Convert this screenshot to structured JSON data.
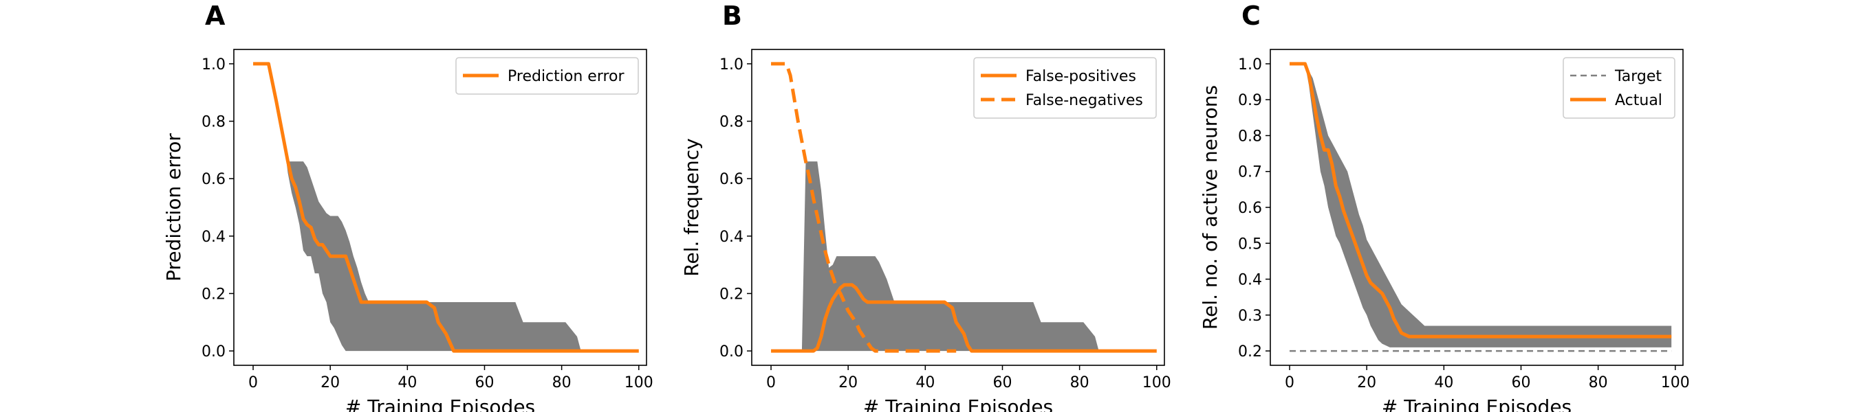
{
  "colors": {
    "line": "#ff7f0e",
    "band": "#808080",
    "target": "#808080"
  },
  "chart_data": [
    {
      "panel": "A",
      "type": "line",
      "xlabel": "# Training Episodes",
      "ylabel": "Prediction error",
      "xlim": [
        -5,
        102
      ],
      "ylim": [
        -0.05,
        1.05
      ],
      "xticks": [
        0,
        20,
        40,
        60,
        80,
        100
      ],
      "yticks": [
        0.0,
        0.2,
        0.4,
        0.6,
        0.8,
        1.0
      ],
      "ytick_labels": [
        "0.0",
        "0.2",
        "0.4",
        "0.6",
        "0.8",
        "1.0"
      ],
      "legend_position": "top-right",
      "series": [
        {
          "name": "Prediction error",
          "style": "solid",
          "x": [
            0,
            4,
            6,
            8,
            9,
            10,
            11,
            12,
            13,
            14,
            15,
            16,
            17,
            18,
            19,
            20,
            21,
            22,
            23,
            24,
            25,
            26,
            27,
            28,
            29,
            30,
            45,
            47,
            48,
            50,
            51,
            52,
            100
          ],
          "y": [
            1.0,
            1.0,
            0.87,
            0.73,
            0.66,
            0.6,
            0.57,
            0.52,
            0.46,
            0.44,
            0.43,
            0.39,
            0.37,
            0.37,
            0.35,
            0.33,
            0.33,
            0.33,
            0.33,
            0.33,
            0.29,
            0.25,
            0.21,
            0.17,
            0.17,
            0.17,
            0.17,
            0.15,
            0.1,
            0.06,
            0.03,
            0.0,
            0.0
          ]
        }
      ],
      "band": {
        "x": [
          0,
          4,
          6,
          8,
          9,
          10,
          11,
          12,
          13,
          14,
          15,
          16,
          17,
          18,
          19,
          20,
          21,
          22,
          23,
          24,
          25,
          26,
          27,
          28,
          29,
          30,
          45,
          47,
          48,
          50,
          51,
          52,
          68,
          70,
          80,
          81,
          84,
          85,
          86,
          100
        ],
        "upper": [
          1.0,
          1.0,
          0.87,
          0.73,
          0.66,
          0.66,
          0.66,
          0.66,
          0.66,
          0.64,
          0.6,
          0.56,
          0.52,
          0.5,
          0.48,
          0.47,
          0.47,
          0.47,
          0.45,
          0.42,
          0.38,
          0.33,
          0.29,
          0.24,
          0.2,
          0.17,
          0.17,
          0.17,
          0.17,
          0.17,
          0.17,
          0.17,
          0.17,
          0.1,
          0.1,
          0.1,
          0.05,
          0.0,
          0.0,
          0.0
        ],
        "lower": [
          1.0,
          1.0,
          0.87,
          0.73,
          0.62,
          0.55,
          0.5,
          0.44,
          0.35,
          0.33,
          0.33,
          0.27,
          0.27,
          0.2,
          0.17,
          0.1,
          0.08,
          0.05,
          0.02,
          0.0,
          0.0,
          0.0,
          0.0,
          0.0,
          0.0,
          0.0,
          0.0,
          0.0,
          0.0,
          0.0,
          0.0,
          0.0,
          0.0,
          0.0,
          0.0,
          0.0,
          0.0,
          0.0,
          0.0,
          0.0
        ]
      }
    },
    {
      "panel": "B",
      "type": "line",
      "xlabel": "# Training Episodes",
      "ylabel": "Rel. frequency",
      "xlim": [
        -5,
        102
      ],
      "ylim": [
        -0.05,
        1.05
      ],
      "xticks": [
        0,
        20,
        40,
        60,
        80,
        100
      ],
      "yticks": [
        0.0,
        0.2,
        0.4,
        0.6,
        0.8,
        1.0
      ],
      "ytick_labels": [
        "0.0",
        "0.2",
        "0.4",
        "0.6",
        "0.8",
        "1.0"
      ],
      "legend_position": "top-right",
      "series": [
        {
          "name": "False-positives",
          "style": "solid",
          "x": [
            0,
            11,
            12,
            13,
            14,
            15,
            16,
            17,
            18,
            19,
            20,
            21,
            22,
            23,
            24,
            25,
            26,
            27,
            28,
            30,
            45,
            47,
            48,
            50,
            51,
            52,
            100
          ],
          "y": [
            0.0,
            0.0,
            0.01,
            0.05,
            0.11,
            0.15,
            0.18,
            0.2,
            0.22,
            0.23,
            0.23,
            0.23,
            0.22,
            0.2,
            0.18,
            0.17,
            0.17,
            0.17,
            0.17,
            0.17,
            0.17,
            0.15,
            0.1,
            0.06,
            0.02,
            0.0,
            0.0
          ]
        },
        {
          "name": "False-negatives",
          "style": "dashed",
          "x": [
            0,
            4,
            5,
            6,
            7,
            8,
            9,
            10,
            11,
            12,
            13,
            14,
            15,
            16,
            17,
            18,
            19,
            20,
            21,
            22,
            23,
            24,
            25,
            26,
            27,
            30,
            48
          ],
          "y": [
            1.0,
            1.0,
            0.96,
            0.88,
            0.8,
            0.73,
            0.66,
            0.6,
            0.53,
            0.47,
            0.41,
            0.35,
            0.3,
            0.26,
            0.22,
            0.2,
            0.17,
            0.14,
            0.12,
            0.1,
            0.07,
            0.05,
            0.03,
            0.01,
            0.0,
            0.0,
            0.0
          ]
        }
      ],
      "band": {
        "x": [
          0,
          8,
          9,
          10,
          11,
          12,
          13,
          14,
          15,
          16,
          17,
          18,
          19,
          20,
          25,
          27,
          28,
          30,
          31,
          32,
          33,
          34,
          35,
          36,
          45,
          47,
          48,
          50,
          51,
          52,
          68,
          70,
          80,
          81,
          84,
          85,
          86,
          100
        ],
        "upper": [
          0.0,
          0.0,
          0.66,
          0.66,
          0.66,
          0.66,
          0.56,
          0.42,
          0.29,
          0.3,
          0.33,
          0.33,
          0.33,
          0.33,
          0.33,
          0.33,
          0.31,
          0.25,
          0.21,
          0.17,
          0.17,
          0.17,
          0.17,
          0.17,
          0.17,
          0.17,
          0.17,
          0.17,
          0.17,
          0.17,
          0.17,
          0.1,
          0.1,
          0.1,
          0.05,
          0.0,
          0.0,
          0.0
        ],
        "lower": [
          0.0,
          0.0,
          0.0,
          0.0,
          0.0,
          0.0,
          0.0,
          0.0,
          0.0,
          0.0,
          0.0,
          0.0,
          0.0,
          0.0,
          0.0,
          0.0,
          0.0,
          0.0,
          0.0,
          0.0,
          0.0,
          0.0,
          0.0,
          0.0,
          0.0,
          0.0,
          0.0,
          0.0,
          0.0,
          0.0,
          0.0,
          0.0,
          0.0,
          0.0,
          0.0,
          0.0,
          0.0,
          0.0
        ]
      }
    },
    {
      "panel": "C",
      "type": "line",
      "xlabel": "# Training Episodes",
      "ylabel": "Rel. no. of active neurons",
      "xlim": [
        -5,
        102
      ],
      "ylim": [
        0.16,
        1.04
      ],
      "xticks": [
        0,
        20,
        40,
        60,
        80,
        100
      ],
      "yticks": [
        0.2,
        0.3,
        0.4,
        0.5,
        0.6,
        0.7,
        0.8,
        0.9,
        1.0
      ],
      "ytick_labels": [
        "0.2",
        "0.3",
        "0.4",
        "0.5",
        "0.6",
        "0.7",
        "0.8",
        "0.9",
        "1.0"
      ],
      "legend_position": "top-right",
      "series": [
        {
          "name": "Target",
          "style": "dashed",
          "x": [
            0,
            99
          ],
          "y": [
            0.2,
            0.2
          ]
        },
        {
          "name": "Actual",
          "style": "solid",
          "x": [
            0,
            4,
            5,
            6,
            7,
            8,
            9,
            10,
            11,
            12,
            13,
            14,
            15,
            16,
            17,
            18,
            19,
            20,
            21,
            22,
            23,
            24,
            25,
            26,
            27,
            28,
            29,
            30,
            31,
            32,
            35,
            40,
            99
          ],
          "y": [
            1.0,
            1.0,
            0.97,
            0.91,
            0.85,
            0.8,
            0.76,
            0.76,
            0.72,
            0.66,
            0.63,
            0.59,
            0.56,
            0.53,
            0.5,
            0.47,
            0.44,
            0.41,
            0.39,
            0.38,
            0.37,
            0.36,
            0.34,
            0.32,
            0.29,
            0.27,
            0.25,
            0.245,
            0.24,
            0.24,
            0.24,
            0.24,
            0.24
          ]
        }
      ],
      "band": {
        "x": [
          0,
          4,
          5,
          6,
          7,
          8,
          9,
          10,
          11,
          12,
          13,
          14,
          15,
          16,
          17,
          18,
          19,
          20,
          21,
          22,
          23,
          24,
          25,
          26,
          27,
          28,
          29,
          30,
          31,
          32,
          33,
          34,
          35,
          36,
          37,
          40,
          99
        ],
        "upper": [
          1.0,
          1.0,
          0.98,
          0.96,
          0.92,
          0.88,
          0.84,
          0.8,
          0.78,
          0.76,
          0.74,
          0.72,
          0.7,
          0.66,
          0.62,
          0.58,
          0.55,
          0.51,
          0.49,
          0.47,
          0.45,
          0.43,
          0.41,
          0.39,
          0.37,
          0.35,
          0.33,
          0.32,
          0.31,
          0.3,
          0.29,
          0.28,
          0.27,
          0.27,
          0.27,
          0.27,
          0.27
        ],
        "lower": [
          1.0,
          1.0,
          0.94,
          0.86,
          0.78,
          0.7,
          0.66,
          0.6,
          0.56,
          0.52,
          0.5,
          0.47,
          0.44,
          0.41,
          0.38,
          0.35,
          0.32,
          0.3,
          0.27,
          0.25,
          0.23,
          0.22,
          0.215,
          0.21,
          0.21,
          0.21,
          0.21,
          0.21,
          0.21,
          0.21,
          0.21,
          0.21,
          0.21,
          0.21,
          0.21,
          0.21,
          0.21
        ]
      }
    }
  ]
}
